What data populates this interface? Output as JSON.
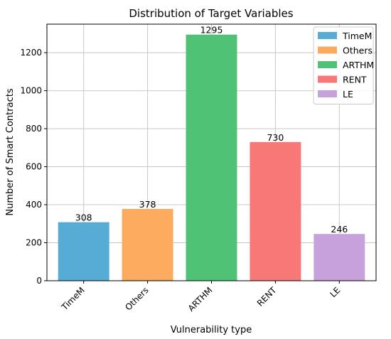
{
  "chart_data": {
    "type": "bar",
    "title": "Distribution of Target Variables",
    "xlabel": "Vulnerability type",
    "ylabel": "Number of Smart Contracts",
    "categories": [
      "TimeM",
      "Others",
      "ARTHM",
      "RENT",
      "LE"
    ],
    "values": [
      308,
      378,
      1295,
      730,
      246
    ],
    "colors": [
      "#57acd6",
      "#fcaa5e",
      "#4fc276",
      "#f87878",
      "#c7a2da"
    ],
    "ylim": [
      0,
      1350
    ],
    "yticks": [
      0,
      200,
      400,
      600,
      800,
      1000,
      1200
    ],
    "grid": true,
    "legend": {
      "position": "top-right",
      "entries": [
        "TimeM",
        "Others",
        "ARTHM",
        "RENT",
        "LE"
      ]
    }
  }
}
